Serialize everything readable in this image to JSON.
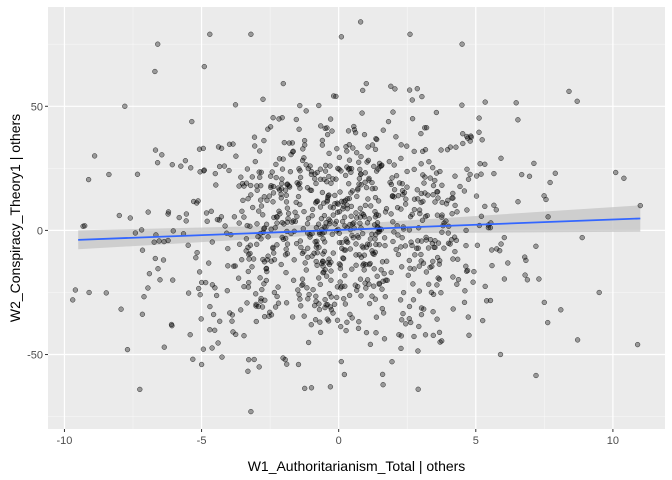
{
  "chart_data": {
    "type": "scatter",
    "title": "",
    "xlabel": "W1_Authoritarianism_Total | others",
    "ylabel": "W2_Conspiracy_Theory1 | others",
    "xlim": [
      -10.6,
      11.9
    ],
    "ylim": [
      -80,
      90
    ],
    "xticks": [
      -10,
      -5,
      0,
      5,
      10
    ],
    "xtick_labels": [
      "-10",
      "-5",
      "0",
      "5",
      "10"
    ],
    "yticks": [
      -50,
      0,
      50
    ],
    "ytick_labels": [
      "-50",
      "0",
      "50"
    ],
    "grid": true,
    "legend": "none",
    "colors": {
      "panel": "#ebebeb",
      "grid": "#ffffff",
      "points": "#000000",
      "fit_line": "#3366ff",
      "confidence_band": "#c4c4c4"
    },
    "fit_line": {
      "x": [
        -9.5,
        11.0
      ],
      "y": [
        -3.8,
        4.8
      ]
    },
    "confidence_band": {
      "x": [
        -9.5,
        0.5,
        11.0
      ],
      "lower": [
        -7.6,
        -1.2,
        -0.5
      ],
      "upper": [
        0.0,
        2.6,
        10.1
      ]
    },
    "outlier_points": [
      [
        -9.7,
        -28
      ],
      [
        -9.6,
        -24
      ],
      [
        -9.1,
        -25
      ],
      [
        -8.9,
        30
      ],
      [
        -7.8,
        50
      ],
      [
        -7.7,
        -48
      ],
      [
        -6.6,
        75
      ],
      [
        -6.7,
        64
      ],
      [
        -4.7,
        79
      ],
      [
        -4.9,
        66
      ],
      [
        -3.2,
        79
      ],
      [
        -3.2,
        -73
      ],
      [
        0.1,
        78
      ],
      [
        0.8,
        84
      ],
      [
        2.6,
        79
      ],
      [
        4.5,
        75
      ],
      [
        2.9,
        -64
      ],
      [
        5.9,
        -50
      ],
      [
        8.7,
        52
      ],
      [
        8.4,
        56
      ],
      [
        9.5,
        -25
      ],
      [
        10.9,
        -46
      ],
      [
        10.4,
        21
      ],
      [
        11.0,
        10
      ],
      [
        8.1,
        -32
      ],
      [
        7.5,
        -29
      ],
      [
        -5.0,
        -54
      ],
      [
        -4.7,
        -40
      ],
      [
        -2.9,
        -55
      ],
      [
        -1.0,
        -38
      ],
      [
        3.7,
        -45
      ],
      [
        -0.1,
        54
      ],
      [
        -0.3,
        -63
      ],
      [
        1.6,
        -58
      ],
      [
        7.9,
        23
      ],
      [
        6.8,
        -18
      ],
      [
        -8.0,
        6
      ],
      [
        -7.6,
        5
      ],
      [
        3.0,
        39
      ],
      [
        0.3,
        -37
      ]
    ],
    "n_generated_points": 960,
    "x_center": 0,
    "x_spread": 3.2,
    "y_spread": 24
  }
}
